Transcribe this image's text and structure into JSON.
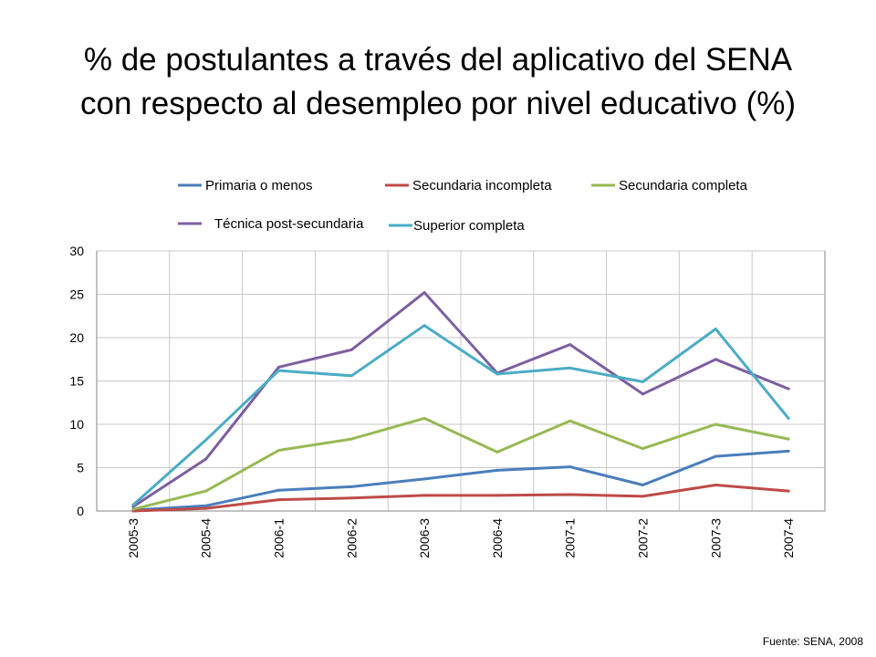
{
  "title_line1": "% de postulantes a través del aplicativo del SENA",
  "title_line2": "con respecto al desempleo por nivel educativo (%)",
  "source": "Fuente: SENA, 2008",
  "chart_data": {
    "type": "line",
    "title": "% de postulantes a través del aplicativo del SENA con respecto al desempleo por nivel educativo (%)",
    "xlabel": "",
    "ylabel": "",
    "categories": [
      "2005-3",
      "2005-4",
      "2006-1",
      "2006-2",
      "2006-3",
      "2006-4",
      "2007-1",
      "2007-2",
      "2007-3",
      "2007-4"
    ],
    "ylim": [
      0,
      30
    ],
    "yticks": [
      0,
      5,
      10,
      15,
      20,
      25,
      30
    ],
    "grid": true,
    "legend": "top",
    "series": [
      {
        "name": "Primaria o menos",
        "color": "#4a7ebb",
        "values": [
          0.1,
          0.6,
          2.4,
          2.8,
          3.7,
          4.7,
          5.1,
          3.0,
          6.3,
          6.9
        ]
      },
      {
        "name": "Secundaria incompleta",
        "color": "#be4b48",
        "values": [
          0.0,
          0.3,
          1.3,
          1.5,
          1.8,
          1.8,
          1.9,
          1.7,
          3.0,
          2.3
        ]
      },
      {
        "name": "Secundaria completa",
        "color": "#98b954",
        "values": [
          0.2,
          2.3,
          7.0,
          8.3,
          10.7,
          6.8,
          10.4,
          7.2,
          10.0,
          8.3
        ]
      },
      {
        "name": "Técnica post-secundaria",
        "color": "#7d5fa0",
        "values": [
          0.5,
          6.0,
          16.6,
          18.6,
          25.2,
          15.9,
          19.2,
          13.5,
          17.5,
          14.1
        ]
      },
      {
        "name": "Superior completa",
        "color": "#4bacc6",
        "values": [
          0.7,
          8.2,
          16.2,
          15.6,
          21.4,
          15.8,
          16.5,
          14.9,
          21.0,
          10.7
        ]
      }
    ]
  }
}
